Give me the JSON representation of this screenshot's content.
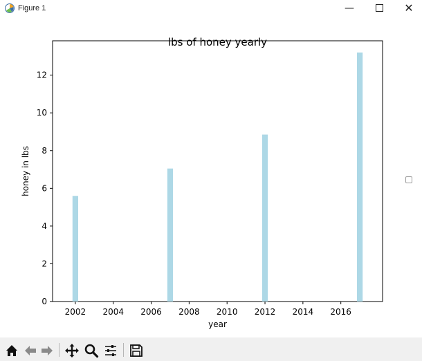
{
  "window": {
    "title": "Figure 1",
    "minimize_glyph": "—",
    "close_glyph": "✕"
  },
  "icons": {
    "app": "matplotlib-figure-icon",
    "minimize": "minimize-icon",
    "maximize": "maximize-icon",
    "close": "close-icon"
  },
  "toolbar": {
    "buttons": [
      {
        "name": "home-icon",
        "glyph": "home"
      },
      {
        "name": "back-arrow-icon",
        "glyph": "back"
      },
      {
        "name": "forward-arrow-icon",
        "glyph": "forward"
      },
      {
        "name": "pan-move-icon",
        "glyph": "pan"
      },
      {
        "name": "zoom-magnifier-icon",
        "glyph": "zoom"
      },
      {
        "name": "configure-subplots-icon",
        "glyph": "subplots"
      },
      {
        "name": "save-floppy-icon",
        "glyph": "save"
      }
    ]
  },
  "chart_data": {
    "type": "bar",
    "title": "lbs of honey yearly",
    "xlabel": "year",
    "ylabel": "honey in lbs",
    "x": [
      2002,
      2007,
      2012,
      2017
    ],
    "values": [
      5.6,
      7.05,
      8.85,
      13.2
    ],
    "bar_width_years": 0.3,
    "xlim": [
      2000.8,
      2018.2
    ],
    "ylim": [
      0,
      13.82
    ],
    "xticks": [
      2002,
      2004,
      2006,
      2008,
      2010,
      2012,
      2014,
      2016
    ],
    "yticks": [
      0,
      2,
      4,
      6,
      8,
      10,
      12
    ],
    "bar_color": "#add8e6",
    "grid": false,
    "legend": "none"
  }
}
